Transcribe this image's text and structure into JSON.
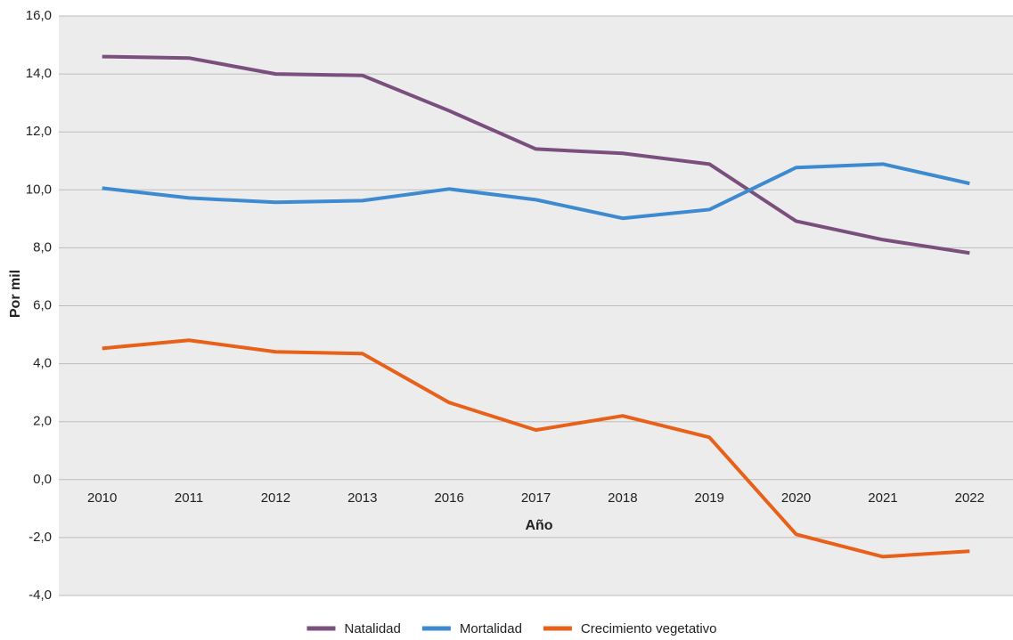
{
  "chart_data": {
    "type": "line",
    "x_label": "Año",
    "y_label": "Por mil",
    "categories": [
      "2010",
      "2011",
      "2012",
      "2013",
      "2016",
      "2017",
      "2018",
      "2019",
      "2020",
      "2021",
      "2022"
    ],
    "series": [
      {
        "name": "Natalidad",
        "color": "#7b4f7d",
        "values": [
          14.6,
          14.55,
          14.0,
          13.95,
          12.73,
          11.41,
          11.26,
          10.89,
          8.92,
          8.28,
          7.82
        ]
      },
      {
        "name": "Mortalidad",
        "color": "#3d8ad0",
        "values": [
          10.06,
          9.72,
          9.57,
          9.63,
          10.03,
          9.66,
          9.02,
          9.32,
          10.77,
          10.89,
          10.22
        ]
      },
      {
        "name": "Crecimiento vegetativo",
        "color": "#e8611a",
        "values": [
          4.53,
          4.81,
          4.41,
          4.35,
          2.66,
          1.71,
          2.2,
          1.46,
          -1.89,
          -2.66,
          -2.47
        ]
      }
    ],
    "ylim": [
      -4,
      16
    ],
    "yticks": [
      {
        "value": -4,
        "label": "-4,0"
      },
      {
        "value": -2,
        "label": "-2,0"
      },
      {
        "value": 0,
        "label": "0,0"
      },
      {
        "value": 2,
        "label": "2,0"
      },
      {
        "value": 4,
        "label": "4,0"
      },
      {
        "value": 6,
        "label": "6,0"
      },
      {
        "value": 8,
        "label": "8,0"
      },
      {
        "value": 10,
        "label": "10,0"
      },
      {
        "value": 12,
        "label": "12,0"
      },
      {
        "value": 14,
        "label": "14,0"
      },
      {
        "value": 16,
        "label": "16,0"
      }
    ],
    "grid": true,
    "legend": "bottom"
  }
}
